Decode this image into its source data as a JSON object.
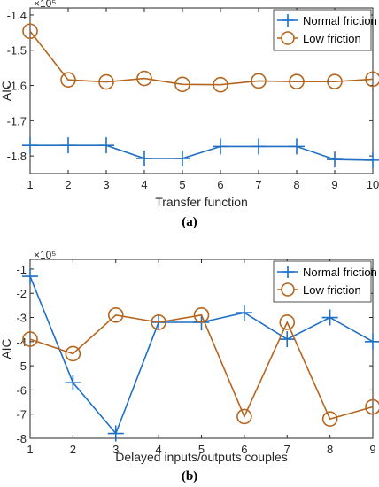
{
  "chart_data": [
    {
      "type": "line",
      "caption": "(a)",
      "xlabel": "Transfer function",
      "ylabel": "AIC",
      "y_multiplier": "×10⁵",
      "x": [
        1,
        2,
        3,
        4,
        5,
        6,
        7,
        8,
        9,
        10
      ],
      "xticks": [
        "1",
        "2",
        "3",
        "4",
        "5",
        "6",
        "7",
        "8",
        "9",
        "10"
      ],
      "xlim": [
        1,
        10
      ],
      "ylim": [
        -1.85,
        -1.38
      ],
      "yticks": [
        -1.4,
        -1.5,
        -1.6,
        -1.7,
        -1.8
      ],
      "ytick_labels": [
        "-1.4",
        "-1.5",
        "-1.6",
        "-1.7",
        "-1.8"
      ],
      "grid": false,
      "legend_position": "top-right",
      "series": [
        {
          "name": "Normal friction",
          "marker": "plus",
          "color": "#1f6fc4",
          "values": [
            -1.77,
            -1.77,
            -1.77,
            -1.807,
            -1.807,
            -1.773,
            -1.773,
            -1.773,
            -1.81,
            -1.812
          ]
        },
        {
          "name": "Low friction",
          "marker": "circle",
          "color": "#b5651d",
          "values": [
            -1.446,
            -1.584,
            -1.59,
            -1.58,
            -1.597,
            -1.598,
            -1.587,
            -1.589,
            -1.589,
            -1.582
          ]
        }
      ]
    },
    {
      "type": "line",
      "caption": "(b)",
      "xlabel": "Delayed inputs/outputs couples",
      "ylabel": "AIC",
      "y_multiplier": "×10⁵",
      "x": [
        1,
        2,
        3,
        4,
        5,
        6,
        7,
        8,
        9
      ],
      "xticks": [
        "1",
        "2",
        "3",
        "4",
        "5",
        "6",
        "7",
        "8",
        "9"
      ],
      "xlim": [
        1,
        9
      ],
      "ylim": [
        -8,
        -0.6
      ],
      "yticks": [
        -1,
        -2,
        -3,
        -4,
        -5,
        -6,
        -7,
        -8
      ],
      "ytick_labels": [
        "-1",
        "-2",
        "-3",
        "-4",
        "-5",
        "-6",
        "-7",
        "-8"
      ],
      "grid": false,
      "legend_position": "top-right",
      "series": [
        {
          "name": "Normal friction",
          "marker": "plus",
          "color": "#1f6fc4",
          "values": [
            -1.3,
            -5.7,
            -7.8,
            -3.2,
            -3.2,
            -2.8,
            -3.9,
            -3.0,
            -4.0
          ]
        },
        {
          "name": "Low friction",
          "marker": "circle",
          "color": "#b5651d",
          "values": [
            -3.9,
            -4.5,
            -2.9,
            -3.2,
            -2.9,
            -7.1,
            -3.2,
            -7.2,
            -6.7
          ]
        }
      ]
    }
  ]
}
